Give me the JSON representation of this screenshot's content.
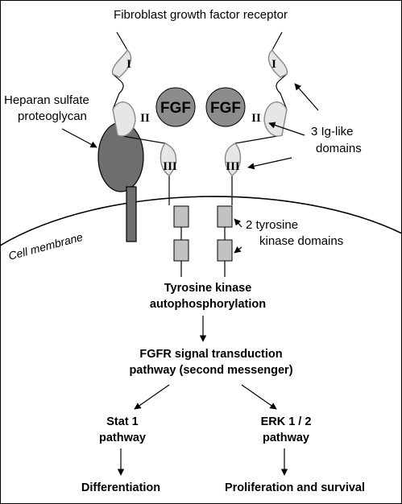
{
  "labels": {
    "receptor": "Fibroblast growth factor receptor",
    "heparan_line1": "Heparan sulfate",
    "heparan_line2": "proteoglycan",
    "ig_line1": "3 Ig-like",
    "ig_line2": "domains",
    "kinase_line1": "2 tyrosine",
    "kinase_line2": "kinase domains",
    "membrane": "Cell membrane",
    "fgf_left": "FGF",
    "fgf_right": "FGF",
    "domain_I": "I",
    "domain_II": "II",
    "domain_III": "III"
  },
  "pathway": {
    "autophos_line1": "Tyrosine kinase",
    "autophos_line2": "autophosphorylation",
    "signal_line1": "FGFR signal transduction",
    "signal_line2": "pathway (second messenger)",
    "stat_line1": "Stat 1",
    "stat_line2": "pathway",
    "erk_line1": "ERK 1 / 2",
    "erk_line2": "pathway",
    "outcome_left": "Differentiation",
    "outcome_right": "Proliferation and survival"
  },
  "colors": {
    "fgf_fill": "#8c8c8c",
    "proteoglycan_fill": "#6e6e6e",
    "kinase_fill": "#c2c2c2",
    "ig_loop_fill": "#e6e6e6",
    "line": "#000000"
  }
}
